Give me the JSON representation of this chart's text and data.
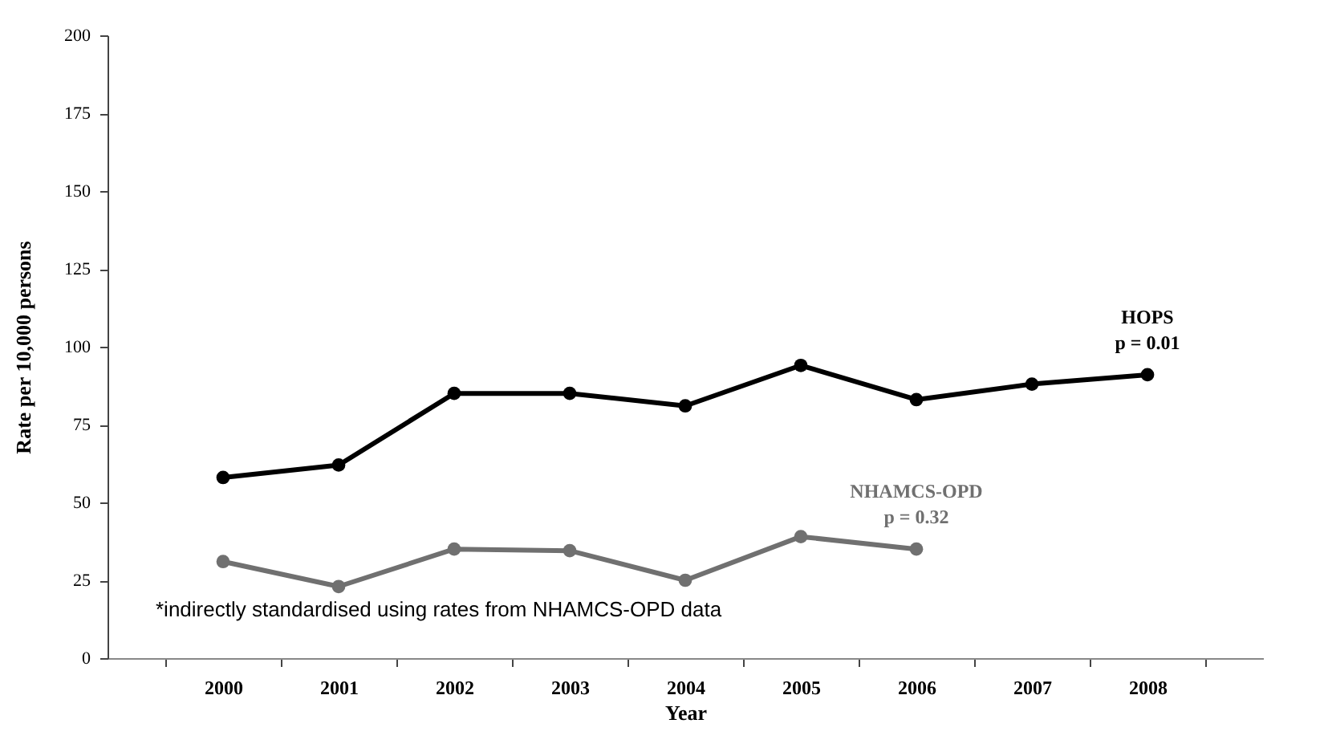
{
  "chart_data": {
    "type": "line",
    "xlabel": "Year",
    "ylabel": "Rate per 10,000 persons",
    "categories": [
      "2000",
      "2001",
      "2002",
      "2003",
      "2004",
      "2005",
      "2006",
      "2007",
      "2008"
    ],
    "series": [
      {
        "name": "HOPS",
        "color": "#000000",
        "values": [
          58,
          62,
          85,
          85,
          81,
          94,
          83,
          88,
          91
        ]
      },
      {
        "name": "NHAMCS-OPD",
        "color": "#707070",
        "values": [
          31,
          23,
          35,
          34.5,
          25,
          39,
          35,
          null,
          null
        ]
      }
    ],
    "ylim": [
      0,
      200
    ],
    "yticks": [
      0,
      25,
      50,
      75,
      100,
      125,
      150,
      175,
      200
    ],
    "grid": false,
    "legend": false,
    "marker": "circle",
    "line_style": "solid",
    "annotations": [
      "p = 0.01",
      "p = 0.32",
      "*indirectly standardised using rates from NHAMCS-OPD data"
    ]
  }
}
